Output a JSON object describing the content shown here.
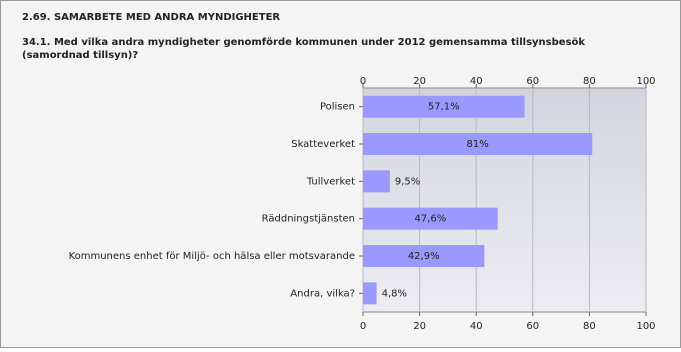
{
  "chart_data": {
    "type": "bar",
    "orientation": "horizontal",
    "heading": "2.69. SAMARBETE MED ANDRA MYNDIGHETER",
    "title": [
      "34.1. Med vilka andra myndigheter genomförde kommunen under 2012 gemensamma tillsynsbesök",
      "(samordnad tillsyn)?"
    ],
    "categories": [
      "Polisen",
      "Skatteverket",
      "Tullverket",
      "Räddningstjänsten",
      "Kommunens enhet för Miljö- och hälsa eller motsvarande",
      "Andra, vilka?"
    ],
    "values": [
      57.1,
      81,
      9.5,
      47.6,
      42.9,
      4.8
    ],
    "value_labels": [
      "57,1%",
      "81%",
      "9,5%",
      "47,6%",
      "42,9%",
      "4,8%"
    ],
    "color": "#9999ff",
    "xlim": [
      0,
      100
    ],
    "xticks": [
      0,
      20,
      40,
      60,
      80,
      100
    ],
    "grid": true
  }
}
